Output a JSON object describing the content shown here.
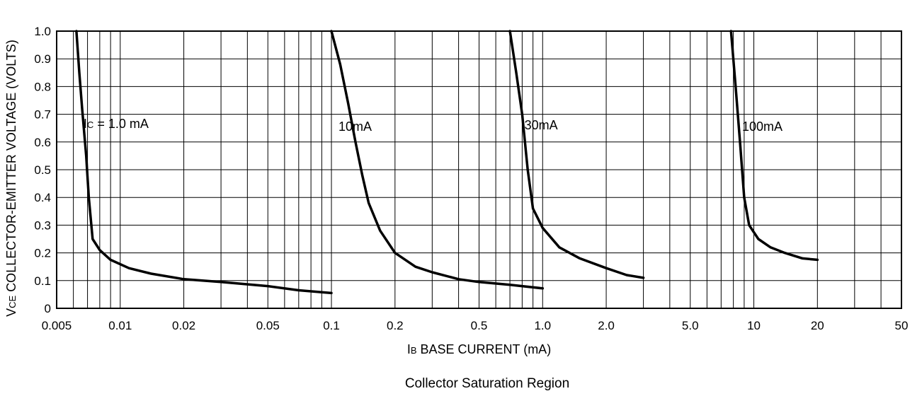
{
  "chart_data": {
    "type": "line",
    "title": "",
    "caption": "Collector Saturation Region",
    "xlabel": {
      "prefix": "I",
      "sub": "B",
      "text": " BASE CURRENT (mA)"
    },
    "ylabel": {
      "prefix": "V",
      "sub": "CE",
      "text": " COLLECTOR-EMITTER VOLTAGE (VOLTS)"
    },
    "x_scale": "log",
    "xlim": [
      0.005,
      50
    ],
    "ylim": [
      0,
      1.0
    ],
    "grid": true,
    "x_ticks": [
      {
        "value": 0.005,
        "label": "0.005"
      },
      {
        "value": 0.01,
        "label": "0.01"
      },
      {
        "value": 0.02,
        "label": "0.02"
      },
      {
        "value": 0.05,
        "label": "0.05"
      },
      {
        "value": 0.1,
        "label": "0.1"
      },
      {
        "value": 0.2,
        "label": "0.2"
      },
      {
        "value": 0.5,
        "label": "0.5"
      },
      {
        "value": 1.0,
        "label": "1.0"
      },
      {
        "value": 2.0,
        "label": "2.0"
      },
      {
        "value": 5.0,
        "label": "5.0"
      },
      {
        "value": 10,
        "label": "10"
      },
      {
        "value": 20,
        "label": "20"
      },
      {
        "value": 50,
        "label": "50"
      }
    ],
    "y_ticks": [
      {
        "value": 0,
        "label": "0"
      },
      {
        "value": 0.1,
        "label": "0.1"
      },
      {
        "value": 0.2,
        "label": "0.2"
      },
      {
        "value": 0.3,
        "label": "0.3"
      },
      {
        "value": 0.4,
        "label": "0.4"
      },
      {
        "value": 0.5,
        "label": "0.5"
      },
      {
        "value": 0.6,
        "label": "0.6"
      },
      {
        "value": 0.7,
        "label": "0.7"
      },
      {
        "value": 0.8,
        "label": "0.8"
      },
      {
        "value": 0.9,
        "label": "0.9"
      },
      {
        "value": 1.0,
        "label": "1.0"
      }
    ],
    "series": [
      {
        "label": {
          "prefix": "I",
          "sub": "C",
          "text": " = 1.0 mA"
        },
        "label_at": [
          0.0067,
          0.65
        ],
        "x": [
          0.0062,
          0.0064,
          0.0066,
          0.0069,
          0.0071,
          0.0074,
          0.008,
          0.009,
          0.011,
          0.014,
          0.02,
          0.03,
          0.05,
          0.07,
          0.1
        ],
        "y": [
          1.0,
          0.85,
          0.72,
          0.55,
          0.4,
          0.25,
          0.21,
          0.175,
          0.145,
          0.125,
          0.105,
          0.095,
          0.08,
          0.065,
          0.055
        ]
      },
      {
        "label": {
          "prefix": "",
          "sub": "",
          "text": "10mA"
        },
        "label_at": [
          0.108,
          0.64
        ],
        "x": [
          0.1,
          0.11,
          0.12,
          0.13,
          0.14,
          0.15,
          0.17,
          0.2,
          0.25,
          0.3,
          0.4,
          0.5,
          0.7,
          1.0
        ],
        "y": [
          1.0,
          0.88,
          0.74,
          0.6,
          0.48,
          0.38,
          0.28,
          0.2,
          0.15,
          0.13,
          0.105,
          0.095,
          0.085,
          0.072
        ]
      },
      {
        "label": {
          "prefix": "",
          "sub": "",
          "text": "30mA"
        },
        "label_at": [
          0.82,
          0.645
        ],
        "x": [
          0.7,
          0.75,
          0.8,
          0.85,
          0.9,
          1.0,
          1.2,
          1.5,
          2.0,
          2.5,
          3.0
        ],
        "y": [
          1.0,
          0.85,
          0.7,
          0.5,
          0.36,
          0.29,
          0.22,
          0.18,
          0.145,
          0.12,
          0.11
        ]
      },
      {
        "label": {
          "prefix": "",
          "sub": "",
          "text": "100mA"
        },
        "label_at": [
          8.8,
          0.64
        ],
        "x": [
          7.8,
          8.2,
          8.6,
          9.0,
          9.5,
          10.5,
          12,
          14,
          17,
          20
        ],
        "y": [
          1.0,
          0.8,
          0.6,
          0.4,
          0.3,
          0.25,
          0.22,
          0.2,
          0.18,
          0.175
        ]
      }
    ]
  }
}
